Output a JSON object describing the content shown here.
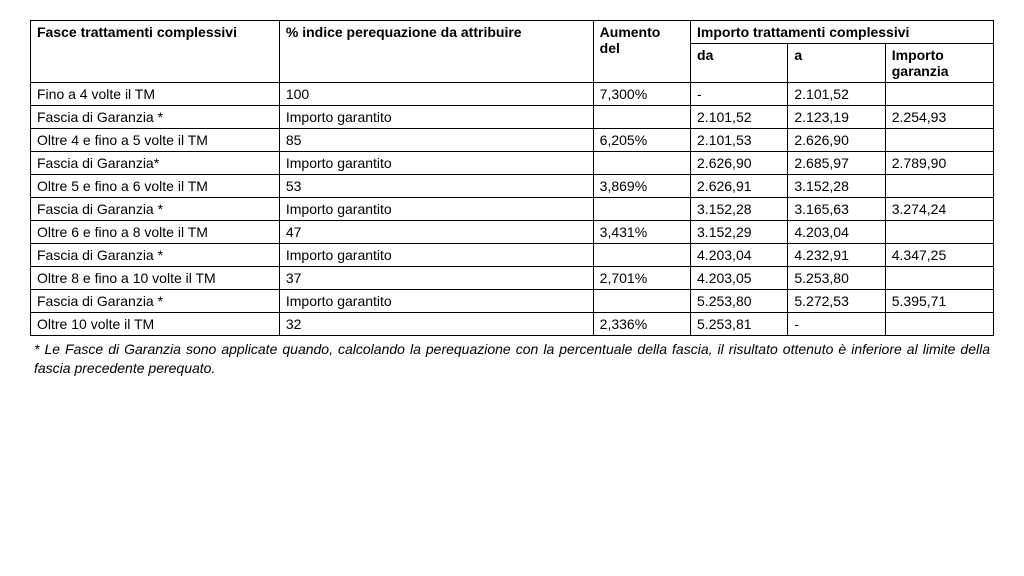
{
  "table": {
    "columns": {
      "fasce": "Fasce trattamenti complessivi",
      "indice": "% indice perequazione da attribuire",
      "aumento": "Aumento del",
      "importo_group": "Importo trattamenti complessivi",
      "da": "da",
      "a": "a",
      "garanzia": "Importo garanzia"
    },
    "rows": [
      {
        "fasce": "Fino a 4 volte il TM",
        "indice": "100",
        "aumento": "7,300%",
        "da": "-",
        "a": "2.101,52",
        "garanzia": ""
      },
      {
        "fasce": "Fascia di Garanzia *",
        "indice": "Importo garantito",
        "aumento": "",
        "da": "2.101,52",
        "a": "2.123,19",
        "garanzia": "2.254,93"
      },
      {
        "fasce": "Oltre 4 e fino a 5 volte il TM",
        "indice": "85",
        "aumento": "6,205%",
        "da": "2.101,53",
        "a": "2.626,90",
        "garanzia": ""
      },
      {
        "fasce": "Fascia di Garanzia*",
        "indice": "Importo garantito",
        "aumento": "",
        "da": "2.626,90",
        "a": "2.685,97",
        "garanzia": "2.789,90"
      },
      {
        "fasce": "Oltre 5 e fino a 6 volte il TM",
        "indice": "53",
        "aumento": "3,869%",
        "da": "2.626,91",
        "a": "3.152,28",
        "garanzia": ""
      },
      {
        "fasce": "Fascia di Garanzia *",
        "indice": "Importo garantito",
        "aumento": "",
        "da": "3.152,28",
        "a": "3.165,63",
        "garanzia": "3.274,24"
      },
      {
        "fasce": "Oltre 6 e fino a 8 volte il TM",
        "indice": "47",
        "aumento": "3,431%",
        "da": "3.152,29",
        "a": "4.203,04",
        "garanzia": ""
      },
      {
        "fasce": "Fascia di Garanzia *",
        "indice": "Importo garantito",
        "aumento": "",
        "da": "4.203,04",
        "a": "4.232,91",
        "garanzia": "4.347,25"
      },
      {
        "fasce": "Oltre 8 e fino a 10 volte il TM",
        "indice": "37",
        "aumento": "2,701%",
        "da": "4.203,05",
        "a": "5.253,80",
        "garanzia": ""
      },
      {
        "fasce": "Fascia di Garanzia *",
        "indice": "Importo garantito",
        "aumento": "",
        "da": "5.253,80",
        "a": "5.272,53",
        "garanzia": "5.395,71"
      },
      {
        "fasce": "Oltre 10 volte il TM",
        "indice": "32",
        "aumento": "2,336%",
        "da": "5.253,81",
        "a": "-",
        "garanzia": ""
      }
    ]
  },
  "footnote": "* Le Fasce di Garanzia sono applicate quando, calcolando la perequazione con la percentuale della fascia, il risultato ottenuto è inferiore al limite della fascia precedente perequato."
}
